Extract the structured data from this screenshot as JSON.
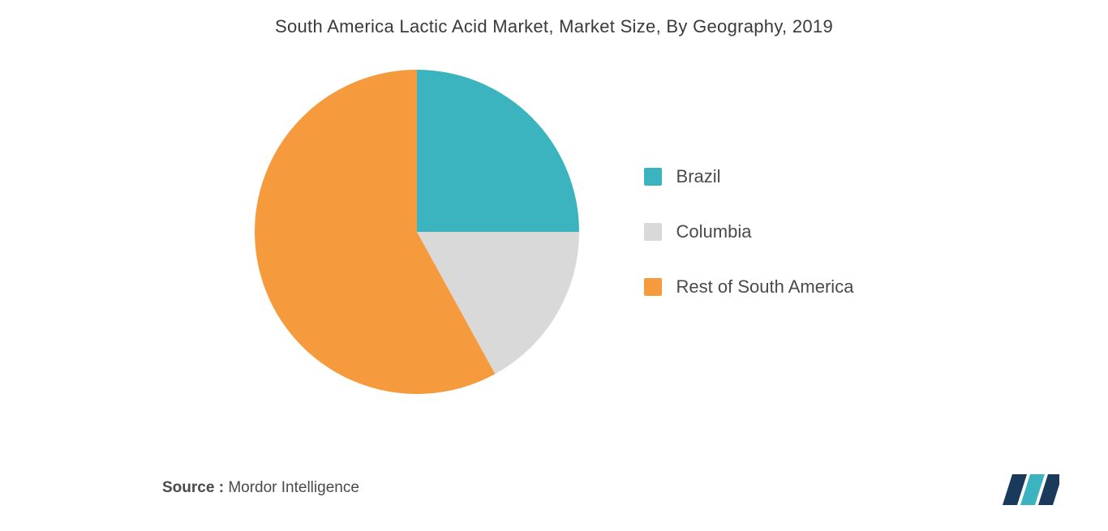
{
  "title": "South America Lactic Acid Market, Market Size, By Geography, 2019",
  "chart": {
    "type": "pie",
    "background_color": "#ffffff",
    "title_fontsize": 22,
    "title_color": "#3a3a3a",
    "slices": [
      {
        "label": "Brazil",
        "value": 25,
        "color": "#3cb4bf"
      },
      {
        "label": "Columbia",
        "value": 17,
        "color": "#d9d9d9"
      },
      {
        "label": "Rest of South America",
        "value": 58,
        "color": "#f59b3e"
      }
    ],
    "legend_fontsize": 22,
    "legend_color": "#4a4a4a"
  },
  "source": {
    "label": "Source :",
    "value": "Mordor Intelligence",
    "fontsize": 19
  },
  "logo": {
    "bar1_color": "#1a3a5c",
    "bar2_color": "#3cb4bf",
    "bar3_color": "#1a3a5c"
  }
}
